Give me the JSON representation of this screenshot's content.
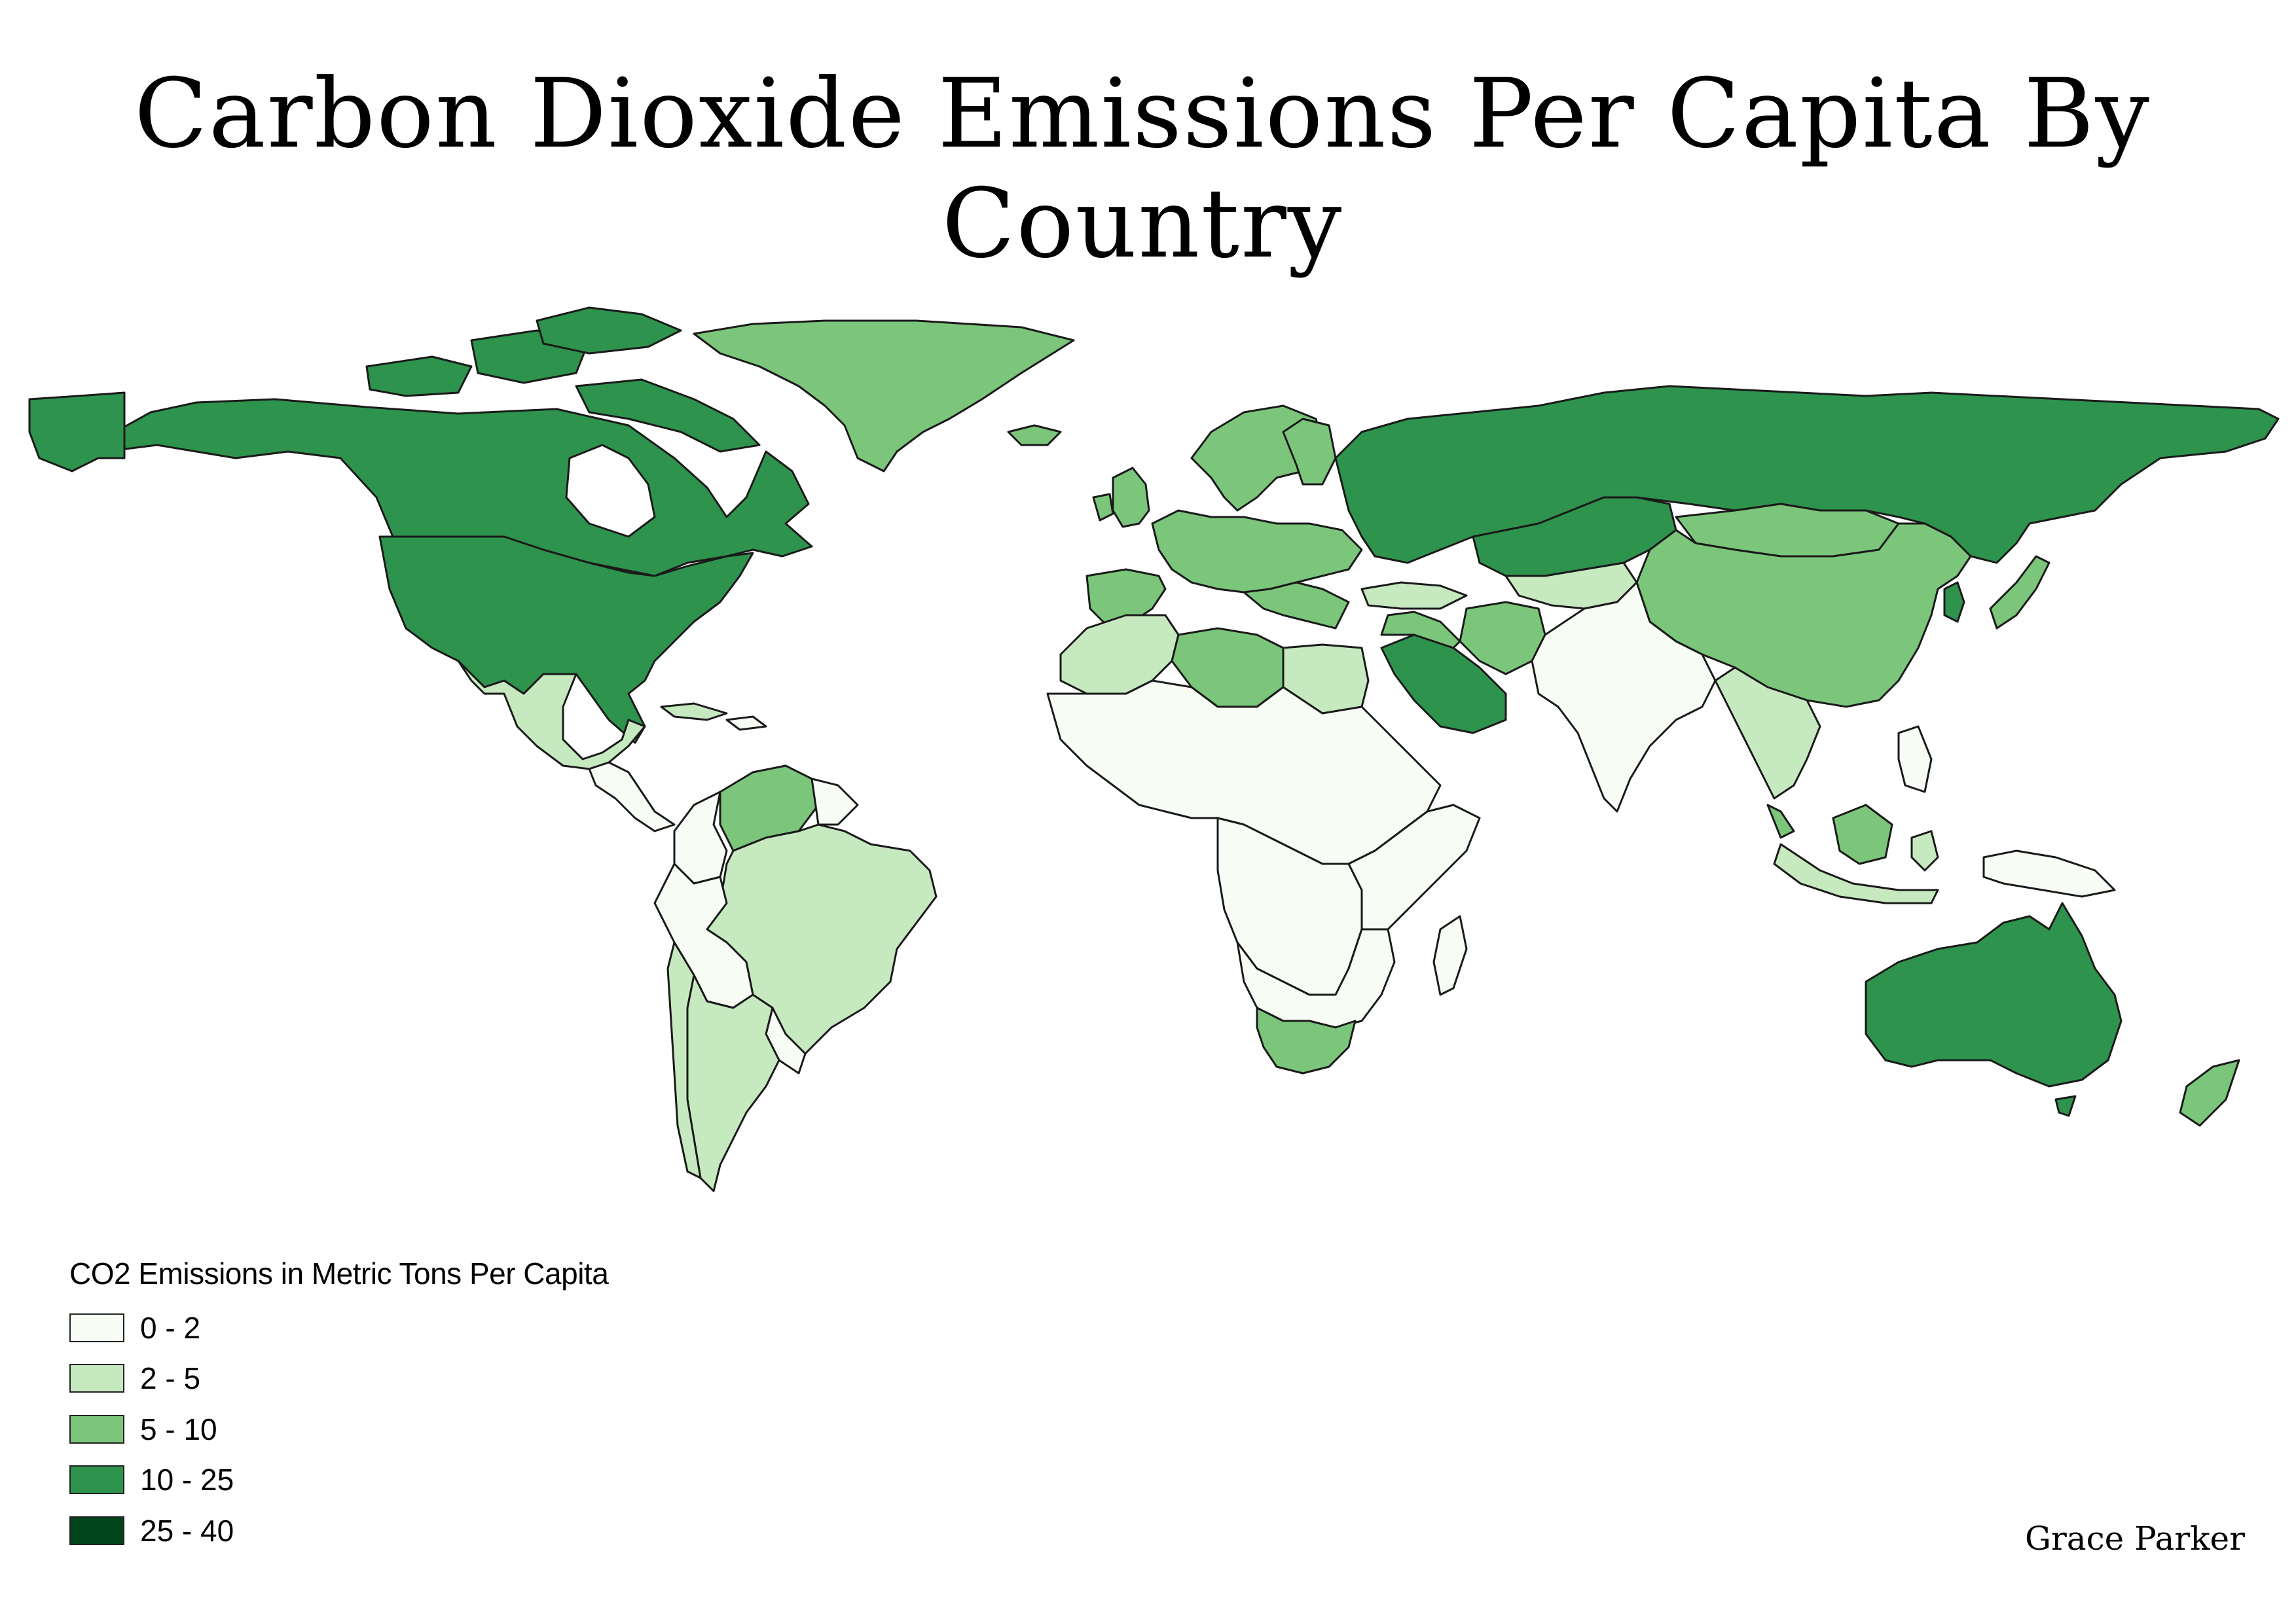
{
  "title": "Carbon Dioxide Emissions Per Capita By Country",
  "credit": "Grace Parker",
  "legend": {
    "title": "CO2 Emissions in Metric Tons Per Capita",
    "classes": [
      {
        "label": "0 - 2",
        "color": "#f7fcf5"
      },
      {
        "label": "2 - 5",
        "color": "#c7e9c0"
      },
      {
        "label": "5 - 10",
        "color": "#7bc67b"
      },
      {
        "label": "10 - 25",
        "color": "#2e934d"
      },
      {
        "label": "25 - 40",
        "color": "#00441b"
      }
    ]
  },
  "colors": {
    "outline": "#1a1a1a",
    "background": "#ffffff"
  },
  "map": {
    "projection": "world, equirectangular",
    "regions": [
      {
        "name": "north-america-canada-usa",
        "class": "10 - 25"
      },
      {
        "name": "greenland",
        "class": "5 - 10"
      },
      {
        "name": "mexico",
        "class": "2 - 5"
      },
      {
        "name": "central-america",
        "class": "0 - 2"
      },
      {
        "name": "cuba",
        "class": "2 - 5"
      },
      {
        "name": "venezuela",
        "class": "5 - 10"
      },
      {
        "name": "colombia",
        "class": "0 - 2"
      },
      {
        "name": "brazil",
        "class": "2 - 5"
      },
      {
        "name": "peru-bolivia",
        "class": "0 - 2"
      },
      {
        "name": "argentina-chile",
        "class": "2 - 5"
      },
      {
        "name": "iceland",
        "class": "5 - 10"
      },
      {
        "name": "uk-ireland",
        "class": "5 - 10"
      },
      {
        "name": "scandinavia",
        "class": "5 - 10"
      },
      {
        "name": "europe",
        "class": "5 - 10"
      },
      {
        "name": "iberia",
        "class": "5 - 10"
      },
      {
        "name": "russia",
        "class": "10 - 25"
      },
      {
        "name": "kazakhstan",
        "class": "10 - 25"
      },
      {
        "name": "north-africa",
        "class": "2 - 5"
      },
      {
        "name": "libya",
        "class": "5 - 10"
      },
      {
        "name": "egypt",
        "class": "2 - 5"
      },
      {
        "name": "sub-saharan-africa",
        "class": "0 - 2"
      },
      {
        "name": "south-africa",
        "class": "5 - 10"
      },
      {
        "name": "madagascar",
        "class": "0 - 2"
      },
      {
        "name": "saudi-arabia",
        "class": "10 - 25"
      },
      {
        "name": "iran",
        "class": "5 - 10"
      },
      {
        "name": "central-asia",
        "class": "2 - 5"
      },
      {
        "name": "india-south-asia",
        "class": "0 - 2"
      },
      {
        "name": "mongolia",
        "class": "5 - 10"
      },
      {
        "name": "china",
        "class": "5 - 10"
      },
      {
        "name": "japan",
        "class": "5 - 10"
      },
      {
        "name": "korea",
        "class": "10 - 25"
      },
      {
        "name": "southeast-asia",
        "class": "2 - 5"
      },
      {
        "name": "malaysia",
        "class": "5 - 10"
      },
      {
        "name": "indonesia",
        "class": "2 - 5"
      },
      {
        "name": "philippines",
        "class": "0 - 2"
      },
      {
        "name": "papua-new-guinea",
        "class": "0 - 2"
      },
      {
        "name": "australia",
        "class": "10 - 25"
      },
      {
        "name": "new-zealand",
        "class": "5 - 10"
      }
    ]
  }
}
